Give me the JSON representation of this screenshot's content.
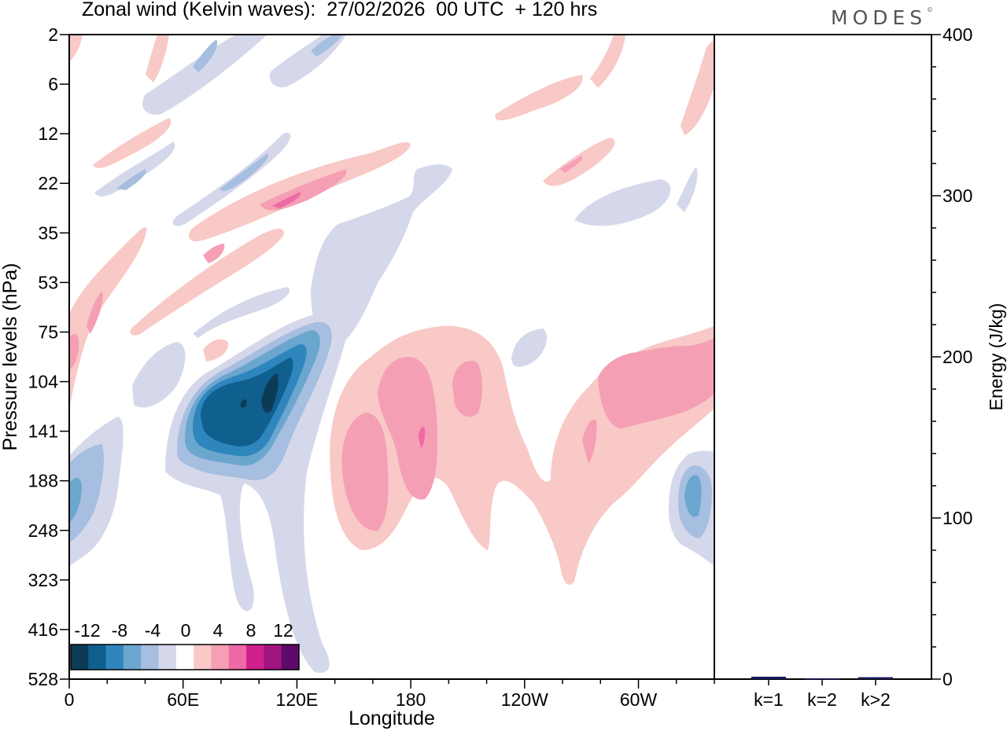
{
  "header": {
    "title": "Zonal wind (Kelvin waves):  27/02/2026  00 UTC  + 120 hrs",
    "brand": "MODES",
    "brand_mark": "©"
  },
  "colors": {
    "scale": [
      "#0d3b57",
      "#0f5f8f",
      "#2f86bd",
      "#6ba6cf",
      "#a6bedf",
      "#d5d8ea",
      "#ffffff",
      "#f8c9c6",
      "#f59fb5",
      "#ee6aa4",
      "#d11f8b",
      "#a0157f",
      "#5e0a6b"
    ],
    "neg_light": "#d5d8ea",
    "neg_1": "#a6bedf",
    "neg_2": "#6ba6cf",
    "neg_3": "#2f86bd",
    "neg_4": "#0f5f8f",
    "neg_5": "#0d3b57",
    "pos_light": "#f8c9c6",
    "pos_1": "#f59fb5",
    "pos_2": "#ee6aa4",
    "bar": "#1a1a5e"
  },
  "chart_data": [
    {
      "type": "heatmap",
      "title": "Zonal wind (Kelvin waves):  27/02/2026  00 UTC  + 120 hrs",
      "xlabel": "Longitude",
      "ylabel": "Pressure levels (hPa)",
      "x_ticks": [
        "0",
        "60E",
        "120E",
        "180",
        "120W",
        "60W"
      ],
      "x_tick_values": [
        0,
        60,
        120,
        180,
        240,
        300
      ],
      "xlim": [
        0,
        340
      ],
      "y_ticks": [
        "2",
        "6",
        "12",
        "22",
        "35",
        "53",
        "75",
        "104",
        "141",
        "188",
        "248",
        "323",
        "416",
        "528"
      ],
      "colorbar": {
        "labels": [
          "-12",
          "-8",
          "-4",
          "0",
          "4",
          "8",
          "12"
        ]
      },
      "features": [
        {
          "name": "easterly core",
          "lon_center": 100,
          "level": "104-141 hPa",
          "value": -13
        },
        {
          "name": "easterly anomaly",
          "lon_center": 5,
          "level": "188-248 hPa",
          "value": -6
        },
        {
          "name": "easterly anomaly",
          "lon_center": 330,
          "level": "188 hPa",
          "value": -8
        },
        {
          "name": "westerly anomaly",
          "lon_center": 150,
          "level": "141-248 hPa",
          "value": 7
        },
        {
          "name": "westerly anomaly",
          "lon_center": 185,
          "level": "104-188 hPa",
          "value": 8
        },
        {
          "name": "westerly anomaly",
          "lon_center": 325,
          "level": "75-141 hPa",
          "value": 6
        },
        {
          "name": "westerly layer",
          "lon_center": 120,
          "level": "22-35 hPa",
          "value": 8
        }
      ]
    },
    {
      "type": "bar",
      "categories": [
        "k=1",
        "k=2",
        "k>2"
      ],
      "values": [
        1.5,
        0.5,
        1.2
      ],
      "ylabel": "Energy (J/kg)",
      "ylim": [
        0,
        400
      ],
      "y_ticks": [
        "0",
        "100",
        "200",
        "300",
        "400"
      ]
    }
  ]
}
